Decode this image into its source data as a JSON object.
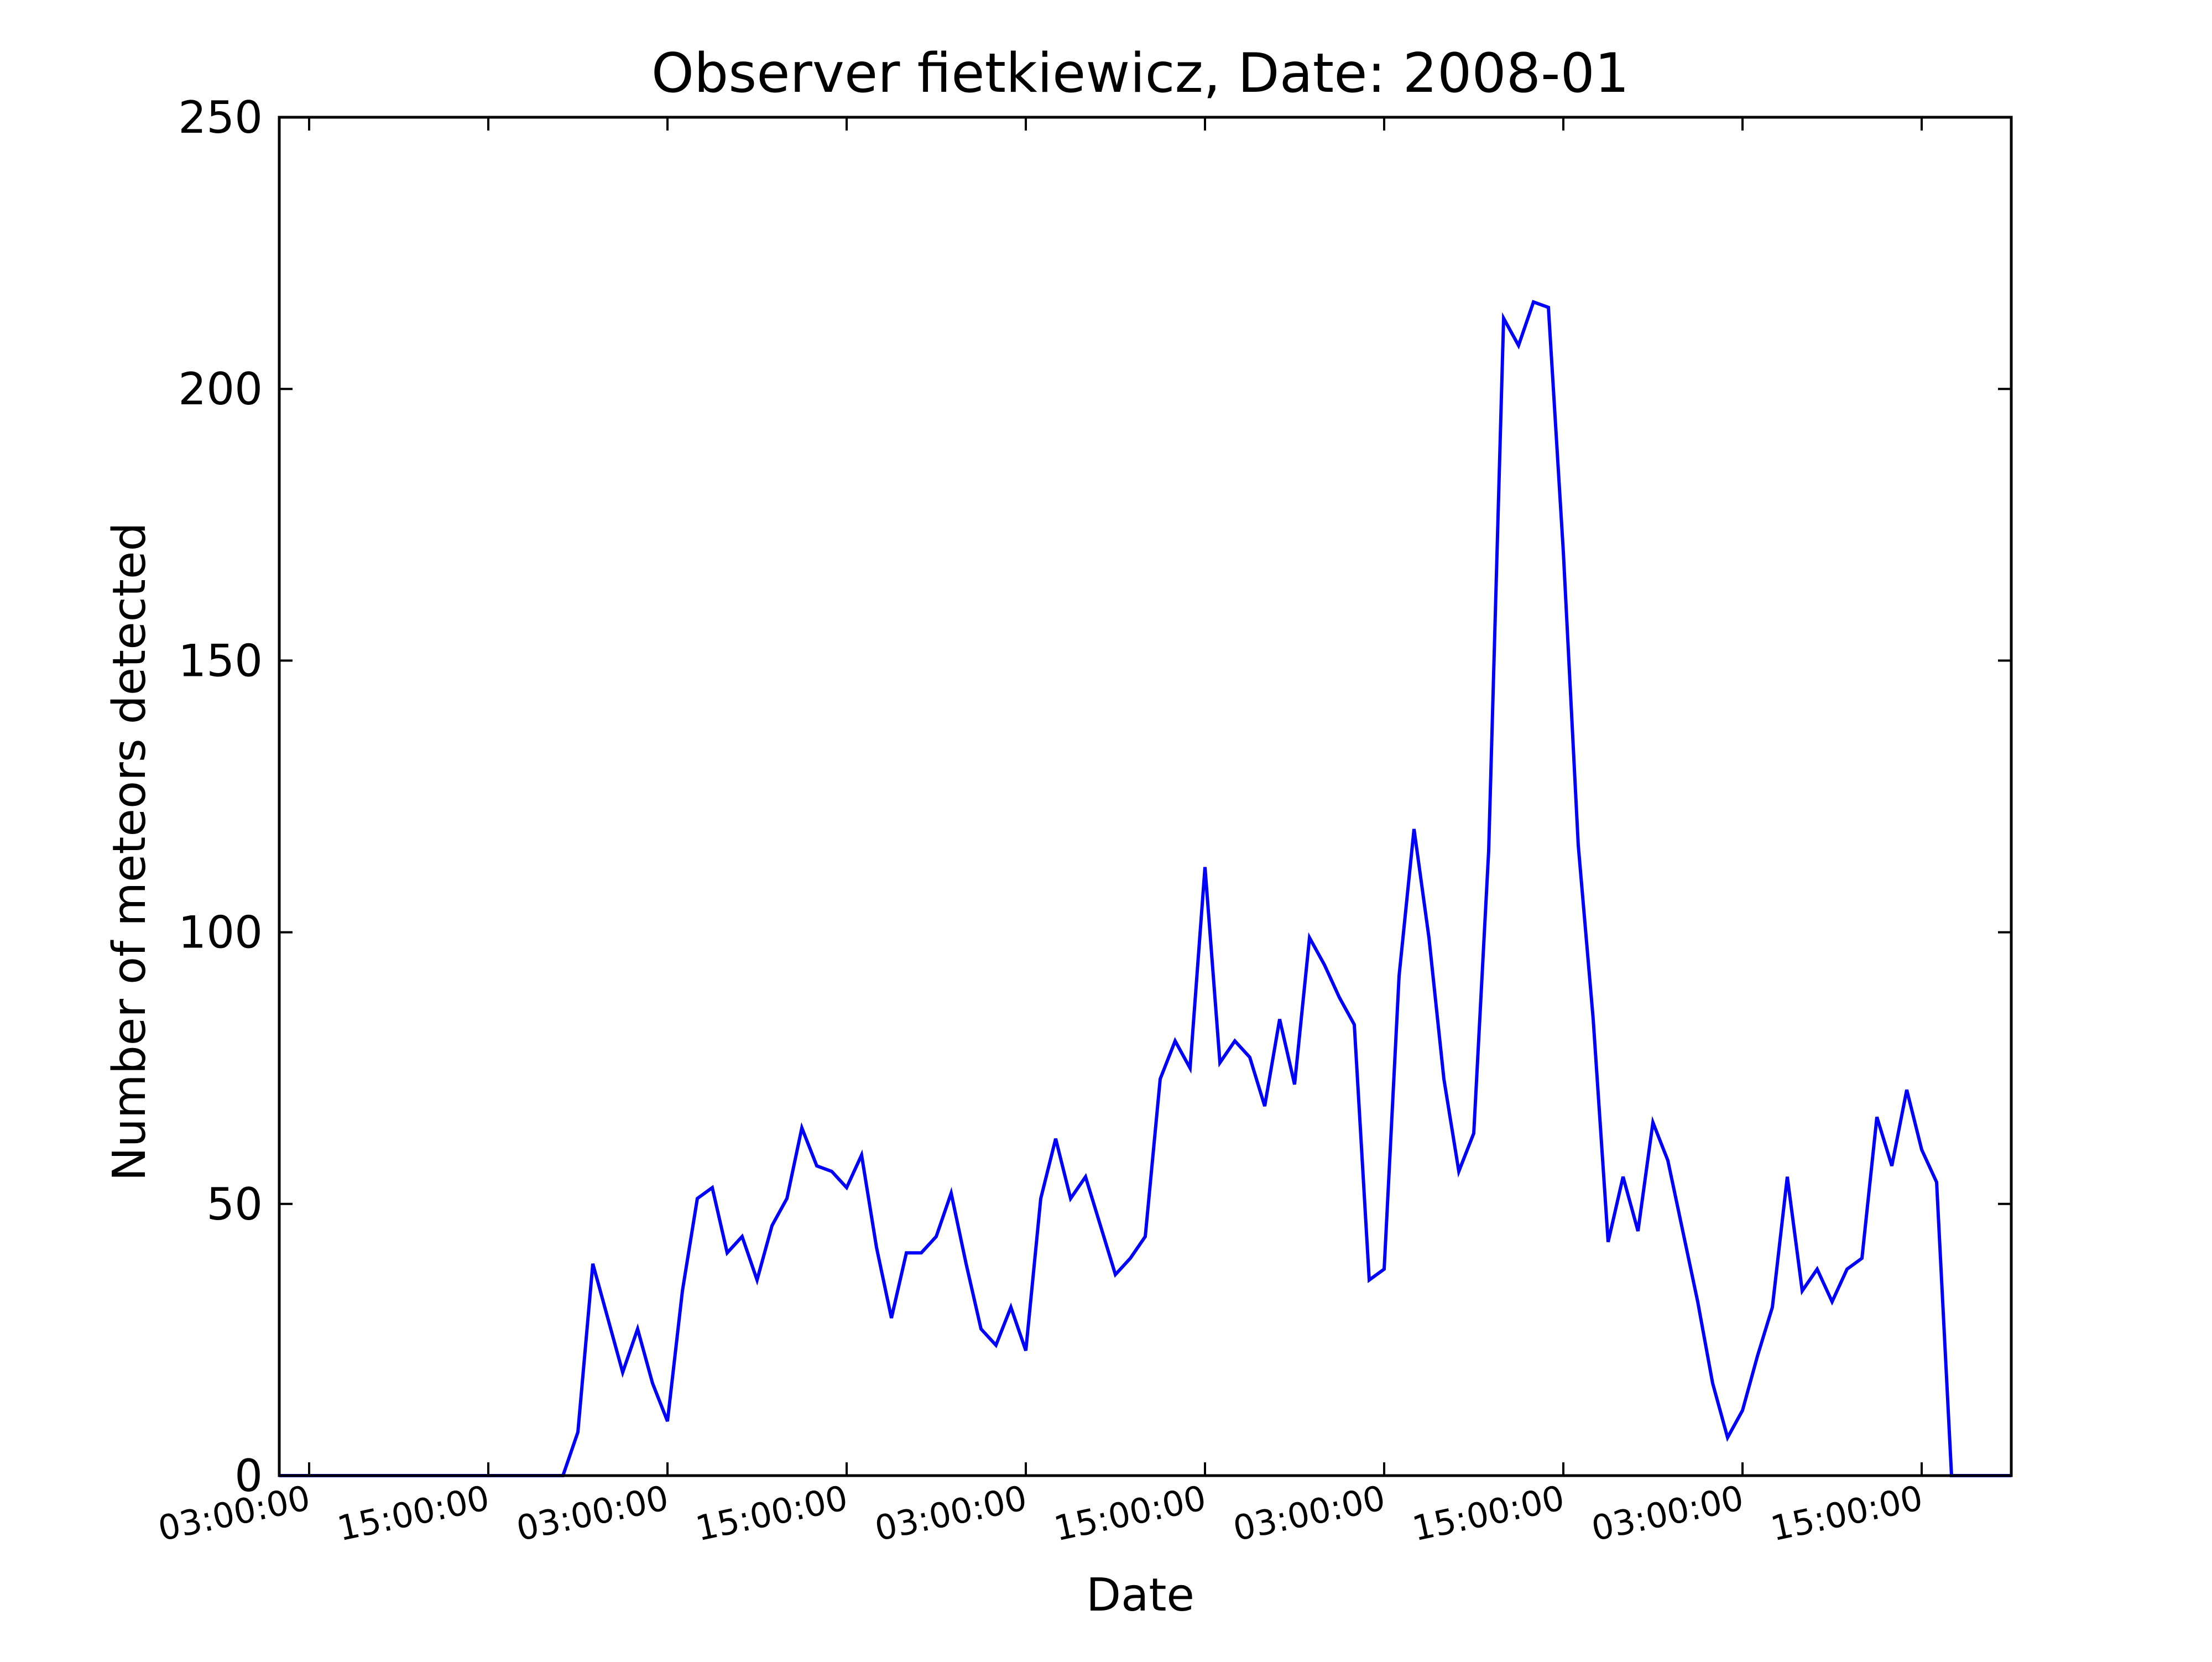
{
  "chart_data": {
    "type": "line",
    "title": "Observer fietkiewicz, Date: 2008-01",
    "xlabel": "Date",
    "ylabel": "Number of meteors detected",
    "ylim": [
      0,
      250
    ],
    "xlim": [
      -2,
      114
    ],
    "yticks": [
      0,
      50,
      100,
      150,
      200,
      250
    ],
    "xtick_positions_hours": [
      0,
      12,
      24,
      36,
      48,
      60,
      72,
      84,
      96,
      108
    ],
    "xtick_labels": [
      "03:00:00",
      "15:00:00",
      "03:00:00",
      "15:00:00",
      "03:00:00",
      "15:00:00",
      "03:00:00",
      "15:00:00",
      "03:00:00",
      "15:00:00"
    ],
    "grid": false,
    "line_color": "#0000ff",
    "series": [
      {
        "x": [
          -2,
          -1,
          0,
          1,
          2,
          3,
          4,
          5,
          6,
          7,
          8,
          9,
          10,
          11,
          12,
          13,
          14,
          15,
          16,
          17,
          18,
          19,
          20,
          21,
          22,
          23,
          24,
          25,
          26,
          27,
          28,
          29,
          30,
          31,
          32,
          33,
          34,
          35,
          36,
          37,
          38,
          39,
          40,
          41,
          42,
          43,
          44,
          45,
          46,
          47,
          48,
          49,
          50,
          51,
          52,
          53,
          54,
          55,
          56,
          57,
          58,
          59,
          60,
          61,
          62,
          63,
          64,
          65,
          66,
          67,
          68,
          69,
          70,
          71,
          72,
          73,
          74,
          75,
          76,
          77,
          78,
          79,
          80,
          81,
          82,
          83,
          84,
          85,
          86,
          87,
          88,
          89,
          90,
          91,
          92,
          93,
          94,
          95,
          96,
          97,
          98,
          99,
          100,
          101,
          102,
          103,
          104,
          105,
          106,
          107,
          108,
          109,
          110,
          111,
          112,
          113,
          114
        ],
        "values": [
          0,
          0,
          0,
          0,
          0,
          0,
          0,
          0,
          0,
          0,
          0,
          0,
          0,
          0,
          0,
          0,
          0,
          0,
          0,
          0,
          8,
          39,
          29,
          19,
          27,
          17,
          10,
          34,
          51,
          53,
          41,
          44,
          36,
          46,
          51,
          64,
          57,
          56,
          53,
          59,
          42,
          29,
          41,
          41,
          44,
          52,
          39,
          27,
          24,
          31,
          23,
          51,
          62,
          51,
          55,
          46,
          37,
          40,
          44,
          73,
          80,
          75,
          112,
          76,
          80,
          77,
          68,
          84,
          72,
          99,
          94,
          88,
          83,
          36,
          38,
          92,
          119,
          99,
          73,
          56,
          63,
          115,
          213,
          208,
          216,
          215,
          170,
          116,
          84,
          43,
          55,
          45,
          65,
          58,
          45,
          32,
          17,
          7,
          12,
          22,
          31,
          55,
          34,
          38,
          32,
          38,
          40,
          66,
          57,
          71,
          60,
          54,
          0,
          0,
          0,
          0,
          0
        ]
      }
    ]
  }
}
